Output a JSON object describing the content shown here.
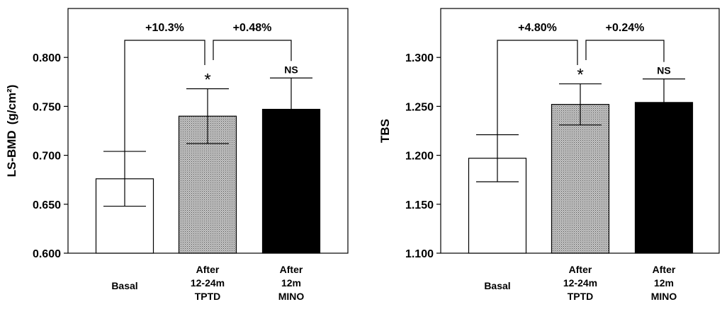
{
  "chart_data": [
    {
      "type": "bar",
      "ylabel": "LS-BMD",
      "ylabel_unit": "(g/cm²)",
      "ylim": [
        0.6,
        0.85
      ],
      "yticks": [
        0.6,
        0.65,
        0.7,
        0.75,
        0.8
      ],
      "ytick_labels": [
        "0.600",
        "0.650",
        "0.700",
        "0.750",
        "0.800"
      ],
      "categories": [
        [
          "Basal"
        ],
        [
          "After",
          "12-24m",
          "TPTD"
        ],
        [
          "After",
          "12m",
          "MINO"
        ]
      ],
      "values": [
        0.676,
        0.74,
        0.747
      ],
      "errors": [
        0.028,
        0.028,
        0.032
      ],
      "bar_styles": [
        "white",
        "dotted",
        "black"
      ],
      "significance": [
        "",
        "*",
        "NS"
      ],
      "comparisons": [
        {
          "from": 0,
          "to": 1,
          "label": "+10.3%"
        },
        {
          "from": 1,
          "to": 2,
          "label": "+0.48%"
        }
      ]
    },
    {
      "type": "bar",
      "ylabel": "TBS",
      "ylabel_unit": "",
      "ylim": [
        1.1,
        1.35
      ],
      "yticks": [
        1.1,
        1.15,
        1.2,
        1.25,
        1.3
      ],
      "ytick_labels": [
        "1.100",
        "1.150",
        "1.200",
        "1.250",
        "1.300"
      ],
      "categories": [
        [
          "Basal"
        ],
        [
          "After",
          "12-24m",
          "TPTD"
        ],
        [
          "After",
          "12m",
          "MINO"
        ]
      ],
      "values": [
        1.197,
        1.252,
        1.254
      ],
      "errors": [
        0.024,
        0.021,
        0.024
      ],
      "bar_styles": [
        "white",
        "dotted",
        "black"
      ],
      "significance": [
        "",
        "*",
        "NS"
      ],
      "comparisons": [
        {
          "from": 0,
          "to": 1,
          "label": "+4.80%"
        },
        {
          "from": 1,
          "to": 2,
          "label": "+0.24%"
        }
      ]
    }
  ]
}
